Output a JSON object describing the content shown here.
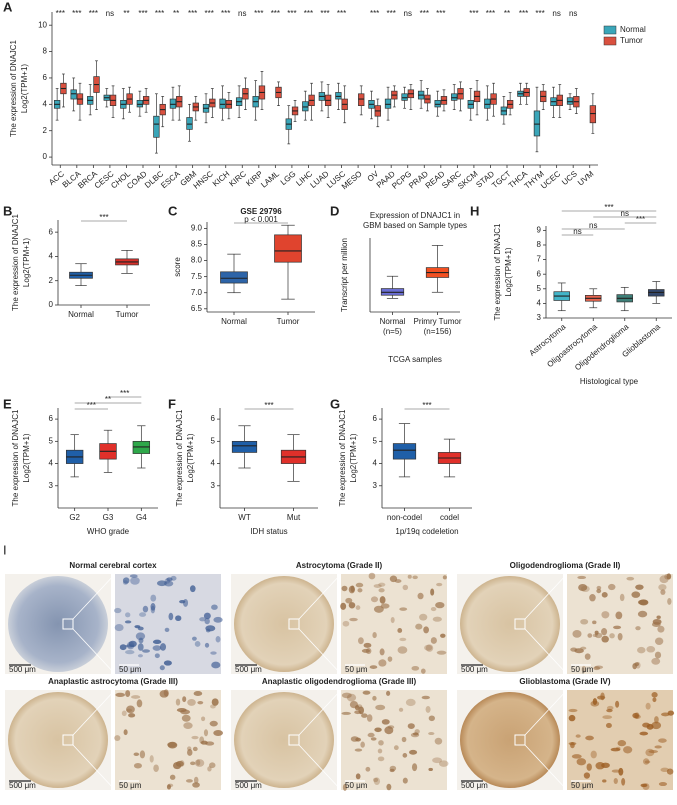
{
  "chart_data": [
    {
      "type": "box",
      "label": "A",
      "ylabel": [
        "The expression of  DNAJC1",
        "Log2(TPM+1)"
      ],
      "categories": [
        "ACC",
        "BLCA",
        "BRCA",
        "CESC",
        "CHOL",
        "COAD",
        "DLBC",
        "ESCA",
        "GBM",
        "HNSC",
        "KICH",
        "KIRC",
        "KIRP",
        "LAML",
        "LGG",
        "LIHC",
        "LUAD",
        "LUSC",
        "MESO",
        "OV",
        "PAAD",
        "PCPG",
        "PRAD",
        "READ",
        "SARC",
        "SKCM",
        "STAD",
        "TGCT",
        "THCA",
        "THYM",
        "UCEC",
        "UCS",
        "UVM"
      ],
      "significance": [
        "***",
        "***",
        "***",
        "ns",
        "**",
        "***",
        "***",
        "**",
        "***",
        "***",
        "***",
        "ns",
        "***",
        "***",
        "***",
        "***",
        "***",
        "***",
        null,
        "***",
        "***",
        "ns",
        "***",
        "***",
        null,
        "***",
        "***",
        "**",
        "***",
        "***",
        "ns",
        "ns",
        null
      ],
      "ylim": [
        -0.6,
        11
      ],
      "yticks": [
        0,
        2,
        4,
        6,
        8,
        10
      ],
      "series": [
        {
          "name": "Normal",
          "color": "#3aa6b9",
          "q1": [
            3.7,
            4.4,
            4.0,
            4.3,
            3.7,
            3.8,
            1.5,
            3.7,
            2.1,
            3.4,
            3.7,
            3.9,
            3.8,
            null,
            2.1,
            3.5,
            4.3,
            4.4,
            null,
            3.7,
            3.7,
            4.3,
            4.4,
            3.8,
            4.3,
            3.7,
            3.7,
            3.2,
            4.6,
            1.6,
            3.9,
            4.0,
            null
          ],
          "median": [
            4.0,
            4.8,
            4.3,
            4.5,
            4.0,
            4.0,
            2.5,
            4.0,
            2.5,
            3.7,
            4.0,
            4.2,
            4.2,
            null,
            2.5,
            3.8,
            4.6,
            4.6,
            null,
            4.0,
            4.0,
            4.5,
            4.7,
            4.0,
            4.5,
            4.0,
            4.0,
            3.5,
            4.8,
            2.5,
            4.2,
            4.2,
            null
          ],
          "q3": [
            4.3,
            5.1,
            4.6,
            4.7,
            4.3,
            4.3,
            3.1,
            4.4,
            3.0,
            4.0,
            4.4,
            4.5,
            4.6,
            null,
            2.9,
            4.2,
            4.9,
            4.9,
            null,
            4.3,
            4.4,
            4.8,
            5.0,
            4.3,
            4.8,
            4.3,
            4.4,
            3.8,
            5.0,
            3.5,
            4.5,
            4.5,
            null
          ],
          "low": [
            2.8,
            3.5,
            3.2,
            3.8,
            2.9,
            3.1,
            0.3,
            2.8,
            1.2,
            2.6,
            2.8,
            3.0,
            2.8,
            null,
            1.0,
            2.8,
            3.5,
            3.6,
            null,
            2.9,
            2.8,
            3.7,
            3.7,
            3.1,
            3.6,
            2.8,
            2.8,
            2.5,
            4.0,
            0.4,
            3.0,
            3.6,
            null
          ],
          "high": [
            5.2,
            6.0,
            5.5,
            5.2,
            5.2,
            5.0,
            4.8,
            5.3,
            4.0,
            4.8,
            5.4,
            5.4,
            5.8,
            null,
            3.9,
            5.0,
            5.7,
            5.6,
            null,
            5.0,
            5.3,
            5.3,
            5.8,
            5.0,
            5.5,
            5.2,
            5.4,
            4.6,
            5.6,
            5.3,
            5.3,
            4.8,
            null
          ]
        },
        {
          "name": "Tumor",
          "color": "#d9503f",
          "q1": [
            4.8,
            4.0,
            4.9,
            3.9,
            4.0,
            4.0,
            3.2,
            3.8,
            3.5,
            3.8,
            3.7,
            4.4,
            4.4,
            4.5,
            3.2,
            3.9,
            3.9,
            3.6,
            3.9,
            3.1,
            4.4,
            4.5,
            4.1,
            4.0,
            4.4,
            4.2,
            4.0,
            3.7,
            4.6,
            4.2,
            3.9,
            3.8,
            2.6
          ],
          "median": [
            5.2,
            4.4,
            5.5,
            4.3,
            4.4,
            4.3,
            3.6,
            4.2,
            3.8,
            4.1,
            4.0,
            4.8,
            4.9,
            4.9,
            3.5,
            4.3,
            4.3,
            4.0,
            4.4,
            3.5,
            4.7,
            4.8,
            4.4,
            4.3,
            4.8,
            4.6,
            4.4,
            4.0,
            4.9,
            4.6,
            4.3,
            4.2,
            3.3
          ],
          "q3": [
            5.6,
            4.8,
            6.1,
            4.7,
            4.8,
            4.6,
            4.0,
            4.6,
            4.1,
            4.4,
            4.3,
            5.2,
            5.4,
            5.3,
            3.8,
            4.7,
            4.7,
            4.4,
            4.8,
            3.9,
            5.0,
            5.1,
            4.7,
            4.6,
            5.2,
            5.0,
            4.8,
            4.3,
            5.2,
            5.0,
            4.7,
            4.6,
            3.9
          ],
          "low": [
            3.8,
            2.8,
            3.6,
            3.0,
            3.4,
            3.4,
            2.3,
            2.8,
            2.8,
            3.0,
            2.9,
            3.6,
            3.6,
            3.9,
            2.7,
            2.8,
            3.0,
            2.6,
            3.2,
            2.3,
            3.8,
            3.6,
            3.5,
            3.5,
            3.5,
            3.2,
            3.1,
            3.2,
            4.0,
            3.6,
            3.0,
            3.3,
            1.8
          ],
          "high": [
            6.3,
            5.6,
            7.3,
            5.4,
            5.3,
            5.2,
            4.6,
            5.4,
            4.6,
            5.2,
            4.9,
            6.0,
            6.5,
            5.7,
            4.3,
            5.6,
            5.5,
            5.4,
            5.4,
            4.4,
            5.4,
            5.5,
            5.2,
            5.1,
            5.7,
            5.8,
            5.6,
            4.9,
            5.6,
            5.5,
            5.5,
            5.2,
            4.8
          ]
        }
      ]
    },
    {
      "type": "box",
      "label": "B",
      "ylabel": [
        "The expression of  DNAJC1",
        "Log2(TPM+1)"
      ],
      "categories": [
        "Normal",
        "Tumor"
      ],
      "colors": [
        "#1f5fa8",
        "#d7302a"
      ],
      "significance": [
        "***"
      ],
      "ylim": [
        0,
        7
      ],
      "yticks": [
        0,
        2,
        4,
        6
      ],
      "q1": [
        2.2,
        3.3
      ],
      "median": [
        2.45,
        3.55
      ],
      "q3": [
        2.7,
        3.8
      ],
      "low": [
        1.6,
        2.6
      ],
      "high": [
        3.4,
        4.5
      ]
    },
    {
      "type": "box",
      "label": "C",
      "title": [
        "GSE 29796"
      ],
      "ylabel": [
        "score"
      ],
      "categories": [
        "Normal",
        "Tumor"
      ],
      "colors": [
        "#2d64a8",
        "#e0442e"
      ],
      "significance": [
        "p < 0.001"
      ],
      "ylim": [
        6.4,
        9.2
      ],
      "yticks": [
        {
          "value": 6.5,
          "label": "6.5"
        },
        {
          "value": 7,
          "label": "7.0"
        },
        {
          "value": 7.5,
          "label": "7.5"
        },
        {
          "value": 8,
          "label": "8.0"
        },
        {
          "value": 8.5,
          "label": "8.5"
        },
        {
          "value": 9,
          "label": "9.0"
        }
      ],
      "q1": [
        7.3,
        7.95
      ],
      "median": [
        7.45,
        8.3
      ],
      "q3": [
        7.65,
        8.8
      ],
      "low": [
        7.0,
        6.8
      ],
      "high": [
        8.2,
        9.1
      ]
    },
    {
      "type": "box",
      "label": "D",
      "title": [
        "Expression of DNAJC1 in",
        "GBM based on Sample types"
      ],
      "ylabel": [
        "Transcript per million"
      ],
      "categories": [
        "Normal",
        "Primry Tumor"
      ],
      "category_notes": [
        "(n=5)",
        "(n=156)"
      ],
      "xlabel": "TCGA samples",
      "colors": [
        "#6b6fd4",
        "#f25022"
      ],
      "ylim": [
        0,
        30
      ],
      "q1": [
        6.8,
        14
      ],
      "median": [
        8,
        16
      ],
      "q3": [
        9.5,
        18
      ],
      "low": [
        5.5,
        8
      ],
      "high": [
        14.5,
        27
      ]
    },
    {
      "type": "box",
      "label": "E",
      "ylabel": [
        "The expression of  DNAJC1",
        "Log2(TPM+1)"
      ],
      "xlabel": "WHO grade",
      "categories": [
        "G2",
        "G3",
        "G4"
      ],
      "colors": [
        "#1f5fa8",
        "#e0302a",
        "#2ea84a"
      ],
      "significance": [
        "***",
        "**",
        "***"
      ],
      "ylim": [
        2,
        6.5
      ],
      "yticks": [
        3,
        4,
        5,
        6
      ],
      "q1": [
        4.0,
        4.2,
        4.45
      ],
      "median": [
        4.3,
        4.55,
        4.75
      ],
      "q3": [
        4.6,
        4.9,
        5.0
      ],
      "low": [
        3.4,
        3.6,
        3.8
      ],
      "high": [
        5.3,
        5.5,
        5.7
      ]
    },
    {
      "type": "box",
      "label": "F",
      "ylabel": [
        "The expression of  DNAJC1",
        "Log2(TPM+1)"
      ],
      "xlabel": "IDH status",
      "categories": [
        "WT",
        "Mut"
      ],
      "colors": [
        "#1f5fa8",
        "#e0302a"
      ],
      "significance": [
        "***"
      ],
      "ylim": [
        2,
        6.5
      ],
      "yticks": [
        3,
        4,
        5,
        6
      ],
      "q1": [
        4.5,
        4.0
      ],
      "median": [
        4.8,
        4.3
      ],
      "q3": [
        5.0,
        4.6
      ],
      "low": [
        3.8,
        3.2
      ],
      "high": [
        5.7,
        5.3
      ]
    },
    {
      "type": "box",
      "label": "G",
      "ylabel": [
        "The expression of  DNAJC1",
        "Log2(TPM+1)"
      ],
      "xlabel": "1p/19q codeletion",
      "categories": [
        "non-codel",
        "codel"
      ],
      "colors": [
        "#1f5fa8",
        "#e0302a"
      ],
      "significance": [
        "***"
      ],
      "ylim": [
        2,
        6.5
      ],
      "yticks": [
        3,
        4,
        5,
        6
      ],
      "q1": [
        4.2,
        4.0
      ],
      "median": [
        4.6,
        4.25
      ],
      "q3": [
        4.9,
        4.5
      ],
      "low": [
        3.4,
        3.4
      ],
      "high": [
        5.8,
        5.1
      ]
    },
    {
      "type": "box",
      "label": "H",
      "ylabel": [
        "The expression of DNAJC1",
        "Log2(TPM+1)"
      ],
      "xlabel": "Histological type",
      "categories": [
        "Astrocytoma",
        "Oligoastrocytoma",
        "Oligodendroglioma",
        "Glioblastoma"
      ],
      "colors": [
        "#43b5c9",
        "#e8654f",
        "#3e7f78",
        "#33476b"
      ],
      "significance": [
        "ns",
        "ns",
        "***",
        "ns",
        "***"
      ],
      "ylim": [
        3,
        9.3
      ],
      "yticks": [
        3,
        4,
        5,
        6,
        7,
        8,
        9
      ],
      "q1": [
        4.2,
        4.15,
        4.1,
        4.5
      ],
      "median": [
        4.5,
        4.35,
        4.35,
        4.75
      ],
      "q3": [
        4.8,
        4.55,
        4.6,
        4.95
      ],
      "low": [
        3.5,
        3.7,
        3.5,
        4.0
      ],
      "high": [
        5.4,
        5.0,
        5.1,
        5.5
      ]
    }
  ],
  "ihc": {
    "label": "I",
    "scale_large": "500 μm",
    "scale_small": "50 μm",
    "titles": [
      "Normal cerebral cortex",
      "Astrocytoma (Grade II)",
      "Oligodendroglioma (Grade II)",
      "Anaplastic astrocytoma (Grade III)",
      "Anaplastic oligodendroglioma (Grade III)",
      "Glioblastoma (Grade IV)"
    ]
  }
}
